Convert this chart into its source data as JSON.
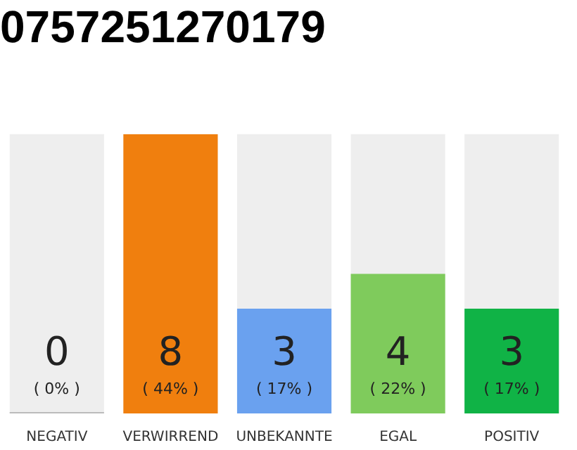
{
  "chart_data": {
    "type": "bar",
    "title": "0757251270179",
    "categories": [
      "NEGATIV",
      "VERWIRREND",
      "UNBEKANNTE",
      "EGAL",
      "POSITIV"
    ],
    "values": [
      0,
      8,
      3,
      4,
      3
    ],
    "colors": [
      "#bbbbbb",
      "#f07f0e",
      "#6aa1ef",
      "#7fcb5c",
      "#10b346"
    ],
    "ylim": [
      0,
      8
    ],
    "tick_labels": "x",
    "grid": false,
    "legend": false,
    "data_labels": true,
    "annotations": [
      "( 0% )",
      "( 44% )",
      "( 17% )",
      "( 22% )",
      "( 17% )"
    ]
  }
}
